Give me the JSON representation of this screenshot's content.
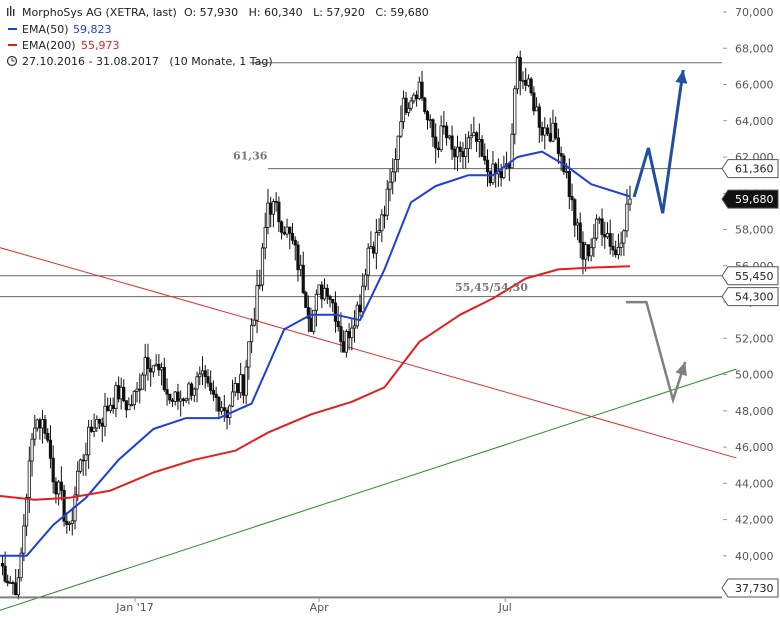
{
  "header": {
    "title": "MorphoSys AG (XETRA, last)",
    "ohlc": "O: 57,930   H: 60,340   L: 57,920   C: 59,680",
    "range": "27.10.2016 - 31.08.2017   (10 Monate, 1 Tag)"
  },
  "legend": [
    {
      "label": "EMA(50)",
      "value": "59,823",
      "color": "#1f3fd6"
    },
    {
      "label": "EMA(200)",
      "value": "55,973",
      "color": "#e02020"
    }
  ],
  "chart_data": {
    "type": "candlestick",
    "title": "MorphoSys AG (XETRA, last)",
    "xlabel": "",
    "ylabel": "",
    "ylim": [
      37.73,
      70.0
    ],
    "xlim": [
      "2016-10-27",
      "2017-08-31"
    ],
    "grid": false,
    "y_ticks": [
      "40,000",
      "42,000",
      "44,000",
      "46,000",
      "48,000",
      "50,000",
      "52,000",
      "54,000",
      "56,000",
      "58,000",
      "60,000",
      "62,000",
      "64,000",
      "66,000",
      "68,000",
      "70,000"
    ],
    "x_ticks": [
      {
        "date": "2017-01-01",
        "label": "Jan '17"
      },
      {
        "date": "2017-04-01",
        "label": "Apr"
      },
      {
        "date": "2017-07-01",
        "label": "Jul"
      }
    ],
    "series": [
      {
        "name": "MorphoSys AG",
        "kind": "close",
        "points": [
          [
            "2016-10-27",
            39.6
          ],
          [
            "2016-11-01",
            38.6
          ],
          [
            "2016-11-05",
            38.3
          ],
          [
            "2016-11-09",
            43.5
          ],
          [
            "2016-11-13",
            47.6
          ],
          [
            "2016-11-18",
            47.2
          ],
          [
            "2016-11-22",
            44.5
          ],
          [
            "2016-11-26",
            43.0
          ],
          [
            "2016-11-30",
            41.2
          ],
          [
            "2016-12-04",
            44.6
          ],
          [
            "2016-12-08",
            46.0
          ],
          [
            "2016-12-12",
            47.4
          ],
          [
            "2016-12-16",
            47.6
          ],
          [
            "2016-12-20",
            48.5
          ],
          [
            "2016-12-24",
            49.0
          ],
          [
            "2016-12-29",
            48.2
          ],
          [
            "2017-01-02",
            49.0
          ],
          [
            "2017-01-06",
            51.0
          ],
          [
            "2017-01-10",
            50.6
          ],
          [
            "2017-01-14",
            49.8
          ],
          [
            "2017-01-18",
            48.6
          ],
          [
            "2017-01-22",
            48.6
          ],
          [
            "2017-01-26",
            49.0
          ],
          [
            "2017-01-30",
            49.5
          ],
          [
            "2017-02-03",
            49.6
          ],
          [
            "2017-02-07",
            48.8
          ],
          [
            "2017-02-11",
            48.6
          ],
          [
            "2017-02-15",
            48.0
          ],
          [
            "2017-02-19",
            49.2
          ],
          [
            "2017-02-23",
            49.5
          ],
          [
            "2017-02-27",
            52.8
          ],
          [
            "2017-03-03",
            55.0
          ],
          [
            "2017-03-07",
            59.5
          ],
          [
            "2017-03-11",
            59.0
          ],
          [
            "2017-03-15",
            58.2
          ],
          [
            "2017-03-19",
            57.2
          ],
          [
            "2017-03-23",
            55.6
          ],
          [
            "2017-03-28",
            53.0
          ],
          [
            "2017-04-01",
            54.5
          ],
          [
            "2017-04-05",
            54.9
          ],
          [
            "2017-04-09",
            53.5
          ],
          [
            "2017-04-13",
            51.5
          ],
          [
            "2017-04-17",
            53.0
          ],
          [
            "2017-04-21",
            54.0
          ],
          [
            "2017-04-25",
            57.0
          ],
          [
            "2017-04-29",
            57.5
          ],
          [
            "2017-05-03",
            59.0
          ],
          [
            "2017-05-07",
            61.0
          ],
          [
            "2017-05-11",
            64.5
          ],
          [
            "2017-05-16",
            65.5
          ],
          [
            "2017-05-20",
            66.0
          ],
          [
            "2017-05-24",
            64.0
          ],
          [
            "2017-05-28",
            62.6
          ],
          [
            "2017-06-01",
            63.5
          ],
          [
            "2017-06-05",
            62.2
          ],
          [
            "2017-06-09",
            61.8
          ],
          [
            "2017-06-13",
            62.8
          ],
          [
            "2017-06-17",
            62.8
          ],
          [
            "2017-06-21",
            61.4
          ],
          [
            "2017-06-25",
            61.0
          ],
          [
            "2017-06-29",
            61.0
          ],
          [
            "2017-07-03",
            61.4
          ],
          [
            "2017-07-07",
            67.2
          ],
          [
            "2017-07-11",
            66.0
          ],
          [
            "2017-07-15",
            65.0
          ],
          [
            "2017-07-19",
            63.6
          ],
          [
            "2017-07-23",
            63.5
          ],
          [
            "2017-07-27",
            62.8
          ],
          [
            "2017-07-31",
            61.0
          ],
          [
            "2017-08-04",
            58.5
          ],
          [
            "2017-08-08",
            56.5
          ],
          [
            "2017-08-12",
            57.2
          ],
          [
            "2017-08-16",
            58.5
          ],
          [
            "2017-08-20",
            57.8
          ],
          [
            "2017-08-24",
            56.6
          ],
          [
            "2017-08-28",
            58.5
          ],
          [
            "2017-08-31",
            59.68
          ]
        ]
      },
      {
        "name": "EMA(50)",
        "kind": "line",
        "color": "#1f3fd6",
        "points": [
          [
            "2016-10-27",
            40.0
          ],
          [
            "2016-11-09",
            40.0
          ],
          [
            "2016-11-22",
            41.7
          ],
          [
            "2016-12-08",
            43.2
          ],
          [
            "2016-12-24",
            45.3
          ],
          [
            "2017-01-10",
            47.0
          ],
          [
            "2017-01-26",
            47.6
          ],
          [
            "2017-02-11",
            47.6
          ],
          [
            "2017-02-27",
            48.4
          ],
          [
            "2017-03-15",
            52.5
          ],
          [
            "2017-03-28",
            53.3
          ],
          [
            "2017-04-09",
            53.3
          ],
          [
            "2017-04-21",
            53.0
          ],
          [
            "2017-05-03",
            55.8
          ],
          [
            "2017-05-16",
            59.5
          ],
          [
            "2017-05-28",
            60.4
          ],
          [
            "2017-06-13",
            61.0
          ],
          [
            "2017-06-25",
            61.0
          ],
          [
            "2017-07-07",
            62.0
          ],
          [
            "2017-07-19",
            62.3
          ],
          [
            "2017-07-31",
            61.5
          ],
          [
            "2017-08-12",
            60.5
          ],
          [
            "2017-08-31",
            59.823
          ]
        ]
      },
      {
        "name": "EMA(200)",
        "kind": "line",
        "color": "#e02020",
        "points": [
          [
            "2016-10-27",
            43.3
          ],
          [
            "2016-11-13",
            43.1
          ],
          [
            "2016-11-30",
            43.2
          ],
          [
            "2016-12-20",
            43.6
          ],
          [
            "2017-01-10",
            44.6
          ],
          [
            "2017-01-30",
            45.3
          ],
          [
            "2017-02-19",
            45.8
          ],
          [
            "2017-03-07",
            46.8
          ],
          [
            "2017-03-28",
            47.8
          ],
          [
            "2017-04-17",
            48.5
          ],
          [
            "2017-05-03",
            49.3
          ],
          [
            "2017-05-20",
            51.8
          ],
          [
            "2017-06-09",
            53.3
          ],
          [
            "2017-06-25",
            54.2
          ],
          [
            "2017-07-11",
            55.3
          ],
          [
            "2017-07-27",
            55.8
          ],
          [
            "2017-08-12",
            55.9
          ],
          [
            "2017-08-31",
            55.973
          ]
        ]
      }
    ],
    "horizontal_levels": [
      {
        "value": 67.2,
        "label": ""
      },
      {
        "value": 61.36,
        "label": "61,36"
      },
      {
        "value": 55.45,
        "label": ""
      },
      {
        "value": 54.3,
        "label": ""
      },
      {
        "value": 37.73,
        "label": ""
      }
    ],
    "level_note": "55,45/54,30",
    "trendlines": [
      {
        "name": "resistance",
        "color": "#e03030",
        "from": [
          "2016-10-27",
          57.0
        ],
        "to": [
          "2017-10-22",
          45.4
        ]
      },
      {
        "name": "support",
        "color": "#2a8a2a",
        "from": [
          "2016-10-27",
          37.0
        ],
        "to": [
          "2017-10-22",
          50.3
        ]
      }
    ],
    "scenario_arrows": [
      {
        "name": "bullish",
        "color": "#1f4fa0",
        "path": [
          [
            "2017-09-02",
            59.8
          ],
          [
            "2017-09-09",
            62.5
          ],
          [
            "2017-09-16",
            58.9
          ],
          [
            "2017-09-26",
            66.8
          ]
        ]
      },
      {
        "name": "bearish",
        "color": "#808080",
        "path": [
          [
            "2017-08-29",
            54.0
          ],
          [
            "2017-09-08",
            54.0
          ],
          [
            "2017-09-21",
            48.6
          ],
          [
            "2017-09-27",
            50.7
          ]
        ]
      }
    ],
    "price_labels": [
      {
        "value": "61,360",
        "price": 61.36,
        "style": "outline",
        "bind": "61,360"
      },
      {
        "value": "59,680",
        "price": 59.68,
        "style": "dark"
      },
      {
        "value": "55,450",
        "price": 55.45,
        "style": "outline"
      },
      {
        "value": "54,300",
        "price": 54.3,
        "style": "outline"
      },
      {
        "value": "37,730",
        "price": 37.73,
        "style": "outline"
      }
    ]
  }
}
